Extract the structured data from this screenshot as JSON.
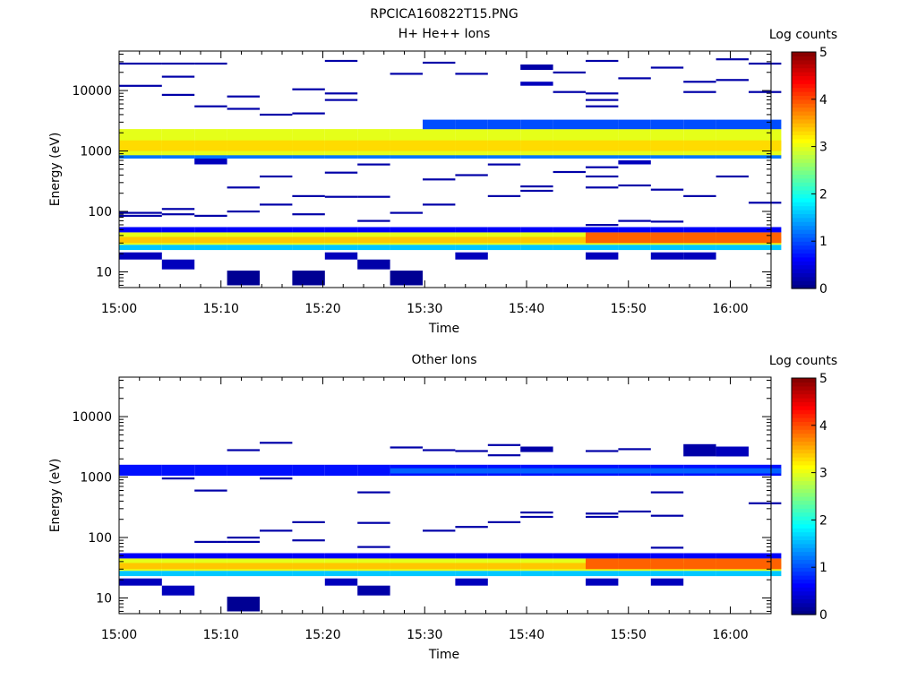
{
  "page_title": "RPCICA160822T15.PNG",
  "colors": {
    "background": "#ffffff",
    "colormap": "jet",
    "colormap_stops": [
      "#00007f",
      "#0000ff",
      "#007fff",
      "#00ffff",
      "#7fff7f",
      "#ffff00",
      "#ff7f00",
      "#ff0000",
      "#7f0000"
    ]
  },
  "chart_data": [
    {
      "type": "heatmap",
      "title": "H+ He++ Ions",
      "xlabel": "Time",
      "ylabel": "Energy (eV)",
      "x_tick_labels": [
        "15:00",
        "15:10",
        "15:20",
        "15:30",
        "15:40",
        "15:50",
        "16:00"
      ],
      "x_ticks_min": [
        0,
        10,
        20,
        30,
        40,
        50,
        60
      ],
      "xlim_min": [
        0,
        64
      ],
      "y_scale": "log",
      "ylim": [
        5.5,
        45000
      ],
      "y_tick_labels": [
        "10",
        "100",
        "1000",
        "10000"
      ],
      "y_ticks": [
        10,
        100,
        1000,
        10000
      ],
      "colorbar": {
        "label": "Log counts",
        "range": [
          0,
          5
        ],
        "tick_labels": [
          "0",
          "1",
          "2",
          "3",
          "4",
          "5"
        ]
      },
      "time_bins_min": [
        0,
        4.2,
        7.4,
        10.6,
        13.8,
        17.0,
        20.2,
        23.4,
        26.6,
        29.8,
        33.0,
        36.2,
        39.4,
        42.6,
        45.8,
        49.0,
        52.2,
        55.4,
        58.6,
        61.8
      ],
      "bands": [
        {
          "emin": 800,
          "emax": 2300,
          "value": 3.0,
          "t0": 0,
          "t1": 61.8
        },
        {
          "emin": 1000,
          "emax": 1500,
          "value": 3.3,
          "t0": 0,
          "t1": 61.8
        },
        {
          "emin": 750,
          "emax": 850,
          "value": 1.2,
          "t0": 0,
          "t1": 61.8
        },
        {
          "emin": 2300,
          "emax": 3300,
          "value": 1.0,
          "t0": 29.8,
          "t1": 61.8
        },
        {
          "emin": 28,
          "emax": 45,
          "value": 3.0,
          "t0": 0,
          "t1": 61.8
        },
        {
          "emin": 30,
          "emax": 38,
          "value": 3.4,
          "t0": 0,
          "t1": 61.8
        },
        {
          "emin": 30,
          "emax": 45,
          "value": 3.9,
          "t0": 45.8,
          "t1": 61.8
        },
        {
          "emin": 23,
          "emax": 28,
          "value": 1.6,
          "t0": 0,
          "t1": 61.8
        },
        {
          "emin": 45,
          "emax": 55,
          "value": 0.6,
          "t0": 0,
          "t1": 61.8
        }
      ],
      "cells": [
        {
          "t": 0,
          "emin": 16,
          "emax": 21,
          "value": 0.3
        },
        {
          "t": 4.2,
          "emin": 11,
          "emax": 16,
          "value": 0.3
        },
        {
          "t": 10.6,
          "emin": 6,
          "emax": 10.5,
          "value": 0.1
        },
        {
          "t": 17.0,
          "emin": 6,
          "emax": 10.5,
          "value": 0.1
        },
        {
          "t": 26.6,
          "emin": 6,
          "emax": 10.5,
          "value": 0.1
        },
        {
          "t": 23.4,
          "emin": 11,
          "emax": 16,
          "value": 0.2
        },
        {
          "t": 20.2,
          "emin": 16,
          "emax": 21,
          "value": 0.3
        },
        {
          "t": 33.0,
          "emin": 16,
          "emax": 21,
          "value": 0.3
        },
        {
          "t": 45.8,
          "emin": 16,
          "emax": 21,
          "value": 0.3
        },
        {
          "t": 52.2,
          "emin": 16,
          "emax": 21,
          "value": 0.3
        },
        {
          "t": 55.4,
          "emin": 16,
          "emax": 21,
          "value": 0.3
        },
        {
          "t": 39.4,
          "emin": 22000,
          "emax": 27000,
          "value": 0.2
        },
        {
          "t": 39.4,
          "emin": 12000,
          "emax": 14000,
          "value": 0.3
        },
        {
          "t": 7.4,
          "emin": 600,
          "emax": 750,
          "value": 0.3
        },
        {
          "t": 49.0,
          "emin": 600,
          "emax": 700,
          "value": 0.3
        }
      ],
      "lines": [
        {
          "t": 0,
          "e": 28000
        },
        {
          "t": 4.2,
          "e": 28000
        },
        {
          "t": 7.4,
          "e": 28000
        },
        {
          "t": 0,
          "e": 12000
        },
        {
          "t": 4.2,
          "e": 17000
        },
        {
          "t": 4.2,
          "e": 8500
        },
        {
          "t": 10.6,
          "e": 8000
        },
        {
          "t": 10.6,
          "e": 5000
        },
        {
          "t": 7.4,
          "e": 5500
        },
        {
          "t": 13.8,
          "e": 4000
        },
        {
          "t": 17.0,
          "e": 10500
        },
        {
          "t": 17.0,
          "e": 4200
        },
        {
          "t": 20.2,
          "e": 31000
        },
        {
          "t": 20.2,
          "e": 9000
        },
        {
          "t": 20.2,
          "e": 7000
        },
        {
          "t": 26.6,
          "e": 19000
        },
        {
          "t": 29.8,
          "e": 29000
        },
        {
          "t": 33.0,
          "e": 19000
        },
        {
          "t": 42.6,
          "e": 20000
        },
        {
          "t": 42.6,
          "e": 9500
        },
        {
          "t": 45.8,
          "e": 31000
        },
        {
          "t": 45.8,
          "e": 9000
        },
        {
          "t": 45.8,
          "e": 7000
        },
        {
          "t": 45.8,
          "e": 5500
        },
        {
          "t": 49.0,
          "e": 16000
        },
        {
          "t": 52.2,
          "e": 24000
        },
        {
          "t": 55.4,
          "e": 14000
        },
        {
          "t": 55.4,
          "e": 9500
        },
        {
          "t": 58.6,
          "e": 33000
        },
        {
          "t": 58.6,
          "e": 15000
        },
        {
          "t": 61.8,
          "e": 28000
        },
        {
          "t": 61.8,
          "e": 9500
        },
        {
          "t": 0,
          "e": 95
        },
        {
          "t": 0,
          "e": 85
        },
        {
          "t": 4.2,
          "e": 110
        },
        {
          "t": 4.2,
          "e": 90
        },
        {
          "t": 7.4,
          "e": 85
        },
        {
          "t": 10.6,
          "e": 250
        },
        {
          "t": 10.6,
          "e": 100
        },
        {
          "t": 13.8,
          "e": 380
        },
        {
          "t": 13.8,
          "e": 130
        },
        {
          "t": 17.0,
          "e": 180
        },
        {
          "t": 17.0,
          "e": 90
        },
        {
          "t": 20.2,
          "e": 440
        },
        {
          "t": 20.2,
          "e": 175
        },
        {
          "t": 23.4,
          "e": 600
        },
        {
          "t": 23.4,
          "e": 175
        },
        {
          "t": 23.4,
          "e": 70
        },
        {
          "t": 26.6,
          "e": 95
        },
        {
          "t": 29.8,
          "e": 130
        },
        {
          "t": 29.8,
          "e": 340
        },
        {
          "t": 33.0,
          "e": 400
        },
        {
          "t": 36.2,
          "e": 180
        },
        {
          "t": 36.2,
          "e": 600
        },
        {
          "t": 39.4,
          "e": 260
        },
        {
          "t": 39.4,
          "e": 220
        },
        {
          "t": 42.6,
          "e": 450
        },
        {
          "t": 45.8,
          "e": 380
        },
        {
          "t": 45.8,
          "e": 250
        },
        {
          "t": 45.8,
          "e": 540
        },
        {
          "t": 49.0,
          "e": 270
        },
        {
          "t": 52.2,
          "e": 230
        },
        {
          "t": 55.4,
          "e": 180
        },
        {
          "t": 58.6,
          "e": 380
        },
        {
          "t": 61.8,
          "e": 140
        },
        {
          "t": 45.8,
          "e": 60
        },
        {
          "t": 49.0,
          "e": 70
        },
        {
          "t": 52.2,
          "e": 68
        }
      ]
    },
    {
      "type": "heatmap",
      "title": "Other Ions",
      "xlabel": "Time",
      "ylabel": "Energy (eV)",
      "x_tick_labels": [
        "15:00",
        "15:10",
        "15:20",
        "15:30",
        "15:40",
        "15:50",
        "16:00"
      ],
      "x_ticks_min": [
        0,
        10,
        20,
        30,
        40,
        50,
        60
      ],
      "xlim_min": [
        0,
        64
      ],
      "y_scale": "log",
      "ylim": [
        5.5,
        45000
      ],
      "y_tick_labels": [
        "10",
        "100",
        "1000",
        "10000"
      ],
      "y_ticks": [
        10,
        100,
        1000,
        10000
      ],
      "colorbar": {
        "label": "Log counts",
        "range": [
          0,
          5
        ],
        "tick_labels": [
          "0",
          "1",
          "2",
          "3",
          "4",
          "5"
        ]
      },
      "time_bins_min": [
        0,
        4.2,
        7.4,
        10.6,
        13.8,
        17.0,
        20.2,
        23.4,
        26.6,
        29.8,
        33.0,
        36.2,
        39.4,
        42.6,
        45.8,
        49.0,
        52.2,
        55.4,
        58.6,
        61.8
      ],
      "bands": [
        {
          "emin": 1050,
          "emax": 1600,
          "value": 0.7,
          "t0": 0,
          "t1": 61.8
        },
        {
          "emin": 1150,
          "emax": 1400,
          "value": 1.1,
          "t0": 26.6,
          "t1": 61.8
        },
        {
          "emin": 28,
          "emax": 45,
          "value": 3.0,
          "t0": 0,
          "t1": 61.8
        },
        {
          "emin": 30,
          "emax": 38,
          "value": 3.4,
          "t0": 0,
          "t1": 61.8
        },
        {
          "emin": 30,
          "emax": 45,
          "value": 3.9,
          "t0": 45.8,
          "t1": 61.8
        },
        {
          "emin": 23,
          "emax": 28,
          "value": 1.6,
          "t0": 0,
          "t1": 61.8
        },
        {
          "emin": 45,
          "emax": 55,
          "value": 0.6,
          "t0": 0,
          "t1": 61.8
        }
      ],
      "cells": [
        {
          "t": 0,
          "emin": 16,
          "emax": 21,
          "value": 0.3
        },
        {
          "t": 4.2,
          "emin": 11,
          "emax": 16,
          "value": 0.3
        },
        {
          "t": 10.6,
          "emin": 6,
          "emax": 10.5,
          "value": 0.1
        },
        {
          "t": 23.4,
          "emin": 11,
          "emax": 16,
          "value": 0.2
        },
        {
          "t": 20.2,
          "emin": 16,
          "emax": 21,
          "value": 0.3
        },
        {
          "t": 33.0,
          "emin": 16,
          "emax": 21,
          "value": 0.3
        },
        {
          "t": 45.8,
          "emin": 16,
          "emax": 21,
          "value": 0.3
        },
        {
          "t": 52.2,
          "emin": 16,
          "emax": 21,
          "value": 0.3
        },
        {
          "t": 55.4,
          "emin": 2200,
          "emax": 3500,
          "value": 0.2
        },
        {
          "t": 58.6,
          "emin": 2200,
          "emax": 3200,
          "value": 0.3
        },
        {
          "t": 39.4,
          "emin": 2600,
          "emax": 3200,
          "value": 0.2
        }
      ],
      "lines": [
        {
          "t": 10.6,
          "e": 2800
        },
        {
          "t": 13.8,
          "e": 3700
        },
        {
          "t": 26.6,
          "e": 3100
        },
        {
          "t": 29.8,
          "e": 2800
        },
        {
          "t": 33.0,
          "e": 2700
        },
        {
          "t": 36.2,
          "e": 3400
        },
        {
          "t": 36.2,
          "e": 2300
        },
        {
          "t": 45.8,
          "e": 2700
        },
        {
          "t": 49.0,
          "e": 2900
        },
        {
          "t": 7.4,
          "e": 600
        },
        {
          "t": 23.4,
          "e": 560
        },
        {
          "t": 52.2,
          "e": 560
        },
        {
          "t": 4.2,
          "e": 950
        },
        {
          "t": 13.8,
          "e": 950
        },
        {
          "t": 7.4,
          "e": 85
        },
        {
          "t": 10.6,
          "e": 100
        },
        {
          "t": 10.6,
          "e": 85
        },
        {
          "t": 13.8,
          "e": 130
        },
        {
          "t": 17.0,
          "e": 180
        },
        {
          "t": 17.0,
          "e": 90
        },
        {
          "t": 23.4,
          "e": 175
        },
        {
          "t": 23.4,
          "e": 70
        },
        {
          "t": 29.8,
          "e": 130
        },
        {
          "t": 33.0,
          "e": 150
        },
        {
          "t": 36.2,
          "e": 180
        },
        {
          "t": 39.4,
          "e": 260
        },
        {
          "t": 39.4,
          "e": 220
        },
        {
          "t": 45.8,
          "e": 250
        },
        {
          "t": 45.8,
          "e": 220
        },
        {
          "t": 49.0,
          "e": 270
        },
        {
          "t": 52.2,
          "e": 230
        },
        {
          "t": 52.2,
          "e": 68
        },
        {
          "t": 61.8,
          "e": 370
        }
      ]
    }
  ]
}
